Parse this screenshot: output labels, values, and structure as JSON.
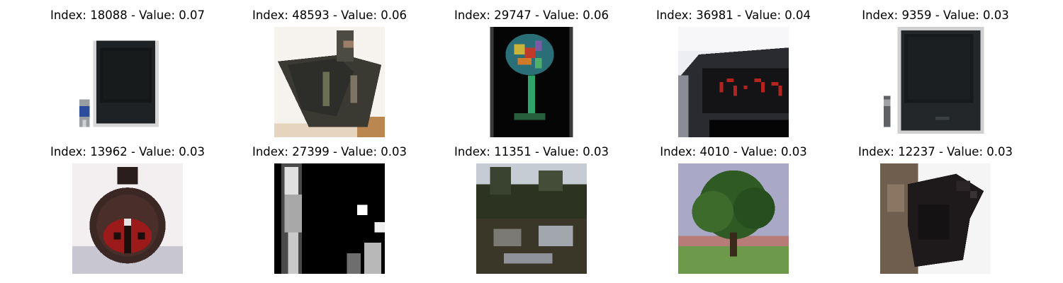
{
  "figure": {
    "tiles": [
      {
        "title": "Index: 18088 - Value: 0.07",
        "subject": "crt-television-with-remote-image"
      },
      {
        "title": "Index: 48593 - Value: 0.06",
        "subject": "tilted-dark-box-object-image"
      },
      {
        "title": "Index: 29747 - Value: 0.06",
        "subject": "decorated-wine-glass-image"
      },
      {
        "title": "Index: 36981 - Value: 0.04",
        "subject": "digital-alarm-clock-image"
      },
      {
        "title": "Index: 9359 - Value: 0.03",
        "subject": "crt-television-with-remote-image"
      },
      {
        "title": "Index: 13962 - Value: 0.03",
        "subject": "round-dark-jar-with-ladybug-image"
      },
      {
        "title": "Index: 27399 - Value: 0.03",
        "subject": "black-and-white-figures-image"
      },
      {
        "title": "Index: 11351 - Value: 0.03",
        "subject": "forest-lake-reflection-image"
      },
      {
        "title": "Index: 4010 - Value: 0.03",
        "subject": "tree-on-lawn-image"
      },
      {
        "title": "Index: 12237 - Value: 0.03",
        "subject": "black-bear-cub-image"
      }
    ]
  }
}
